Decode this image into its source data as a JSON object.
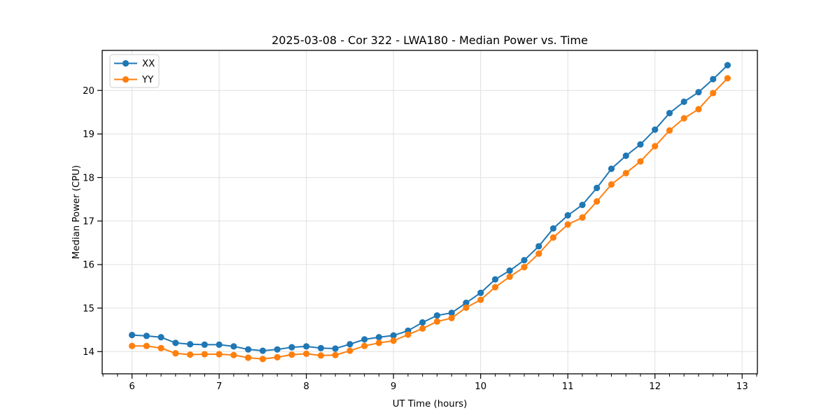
{
  "figure": {
    "background": "#ffffff",
    "text_color": "#000000",
    "spine_color": "#000000"
  },
  "chart_data": {
    "type": "line",
    "title": "2025-03-08 - Cor 322 - LWA180 - Median Power vs. Time",
    "xlabel": "UT Time (hours)",
    "ylabel": "Median Power (CPU)",
    "xlim": [
      5.658,
      13.175
    ],
    "ylim": [
      13.49,
      20.92
    ],
    "xticks": [
      6,
      7,
      8,
      9,
      10,
      11,
      12,
      13
    ],
    "yticks": [
      14,
      15,
      16,
      17,
      18,
      19,
      20
    ],
    "x_minor_tick_step": 0.16667,
    "grid": true,
    "grid_color": "#e0e0e0",
    "legend_position": "upper left",
    "marker": "o",
    "x": [
      6.0,
      6.167,
      6.333,
      6.5,
      6.667,
      6.833,
      7.0,
      7.167,
      7.333,
      7.5,
      7.667,
      7.833,
      8.0,
      8.167,
      8.333,
      8.5,
      8.667,
      8.833,
      9.0,
      9.167,
      9.333,
      9.5,
      9.667,
      9.833,
      10.0,
      10.167,
      10.333,
      10.5,
      10.667,
      10.833,
      11.0,
      11.167,
      11.333,
      11.5,
      11.667,
      11.833,
      12.0,
      12.167,
      12.333,
      12.5,
      12.667,
      12.833
    ],
    "series": [
      {
        "name": "XX",
        "color": "#1f77b4",
        "values": [
          14.38,
          14.36,
          14.33,
          14.2,
          14.17,
          14.16,
          14.16,
          14.12,
          14.05,
          14.02,
          14.05,
          14.1,
          14.12,
          14.08,
          14.07,
          14.17,
          14.28,
          14.33,
          14.37,
          14.48,
          14.67,
          14.83,
          14.89,
          15.12,
          15.35,
          15.66,
          15.86,
          16.1,
          16.42,
          16.83,
          17.13,
          17.37,
          17.76,
          18.2,
          18.5,
          18.76,
          19.1,
          19.48,
          19.74,
          19.96,
          20.26,
          20.58
        ]
      },
      {
        "name": "YY",
        "color": "#ff7f0e",
        "values": [
          14.13,
          14.13,
          14.08,
          13.96,
          13.93,
          13.94,
          13.94,
          13.92,
          13.86,
          13.83,
          13.87,
          13.93,
          13.95,
          13.91,
          13.92,
          14.02,
          14.13,
          14.2,
          14.25,
          14.39,
          14.53,
          14.69,
          14.77,
          15.01,
          15.19,
          15.48,
          15.72,
          15.94,
          16.25,
          16.62,
          16.92,
          17.08,
          17.45,
          17.84,
          18.1,
          18.37,
          18.72,
          19.08,
          19.36,
          19.57,
          19.94,
          20.28
        ]
      }
    ]
  }
}
